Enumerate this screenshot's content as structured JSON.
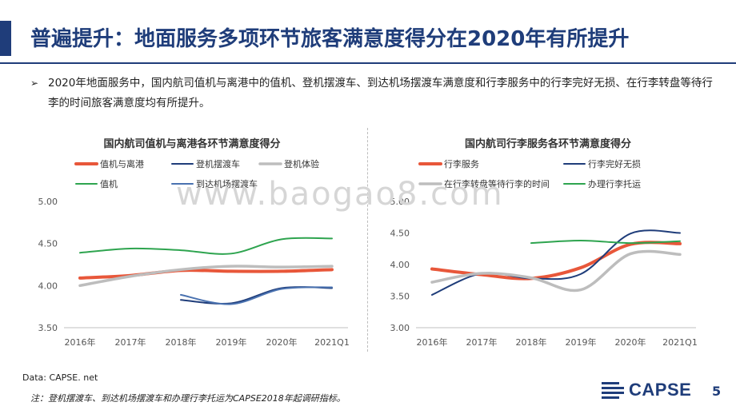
{
  "page_title": "普遍提升：地面服务多项环节旅客满意度得分在2020年有所提升",
  "bullet_marker": "➢",
  "bullet_text": "2020年地面服务中，国内航司值机与离港中的值机、登机摆渡车、到达机场摆渡车满意度和行李服务中的行李完好无损、在行李转盘等待行李的时间旅客满意度均有所提升。",
  "watermark": "www.baogao8.com",
  "source": "Data: CAPSE. net",
  "note": "注：登机摆渡车、到达机场摆渡车和办理行李托运为CAPSE2018年起调研指标。",
  "logo_text": "CAPSE",
  "page_number": "5",
  "colors": {
    "brand": "#1f3d7a"
  },
  "chart_data": [
    {
      "type": "line",
      "title": "国内航司值机与离港各环节满意度得分",
      "xlabel": "",
      "ylabel": "",
      "categories": [
        "2016年",
        "2017年",
        "2018年",
        "2019年",
        "2020年",
        "2021Q1"
      ],
      "ylim": [
        3.5,
        5.0
      ],
      "yticks": [
        "3.50",
        "4.00",
        "4.50",
        "5.00"
      ],
      "legend_position": "top",
      "grid": false,
      "series": [
        {
          "name": "值机与离港",
          "color": "#e8573a",
          "width": 4,
          "values": [
            4.09,
            4.12,
            4.18,
            4.17,
            4.17,
            4.19
          ]
        },
        {
          "name": "登机摆渡车",
          "color": "#1f3d7a",
          "width": 2,
          "values": [
            null,
            null,
            3.83,
            3.79,
            3.97,
            3.97
          ]
        },
        {
          "name": "登机体验",
          "color": "#bdbdbd",
          "width": 3.5,
          "values": [
            4.0,
            4.11,
            4.19,
            4.23,
            4.22,
            4.23
          ]
        },
        {
          "name": "值机",
          "color": "#2ea44f",
          "width": 2,
          "values": [
            4.39,
            4.44,
            4.42,
            4.38,
            4.55,
            4.56
          ]
        },
        {
          "name": "到达机场摆渡车",
          "color": "#4a72b0",
          "width": 2,
          "values": [
            null,
            null,
            3.89,
            3.78,
            3.96,
            3.98
          ]
        }
      ]
    },
    {
      "type": "line",
      "title": "国内航司行李服务各环节满意度得分",
      "xlabel": "",
      "ylabel": "",
      "categories": [
        "2016年",
        "2017年",
        "2018年",
        "2019年",
        "2020年",
        "2021Q1"
      ],
      "ylim": [
        3.0,
        5.0
      ],
      "yticks": [
        "3.00",
        "3.50",
        "4.00",
        "4.50",
        "5.00"
      ],
      "legend_position": "top",
      "grid": false,
      "series": [
        {
          "name": "行李服务",
          "color": "#e8573a",
          "width": 4,
          "values": [
            3.93,
            3.84,
            3.78,
            3.95,
            4.32,
            4.33
          ]
        },
        {
          "name": "行李完好无损",
          "color": "#1f3d7a",
          "width": 2,
          "values": [
            3.52,
            3.86,
            3.78,
            3.85,
            4.49,
            4.5
          ]
        },
        {
          "name": "在行李转盘等待行李的时间",
          "color": "#bdbdbd",
          "width": 3.5,
          "values": [
            3.72,
            3.86,
            3.79,
            3.6,
            4.17,
            4.16
          ]
        },
        {
          "name": "办理行李托运",
          "color": "#2ea44f",
          "width": 2,
          "values": [
            null,
            null,
            4.34,
            4.38,
            4.34,
            4.37
          ]
        }
      ]
    }
  ]
}
